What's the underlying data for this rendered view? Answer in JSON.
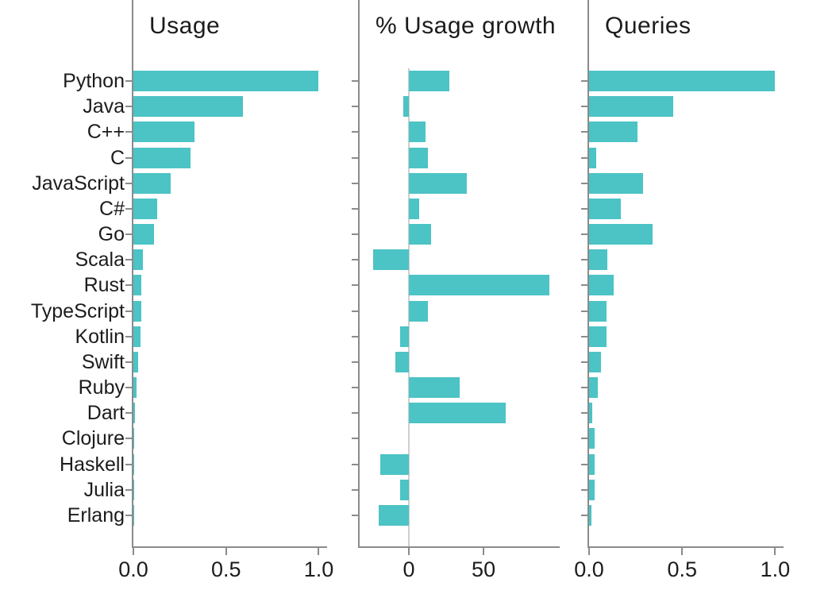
{
  "figure": {
    "bar_color": "#4cc3c5",
    "axis_color": "#8b8b8b",
    "zero_line_color": "#cfcfcf",
    "text_color": "#1c1c1c"
  },
  "chart_data": {
    "type": "bar",
    "orientation": "horizontal",
    "grid": false,
    "legend": "none",
    "categories": [
      "Python",
      "Java",
      "C++",
      "C",
      "JavaScript",
      "C#",
      "Go",
      "Scala",
      "Rust",
      "TypeScript",
      "Kotlin",
      "Swift",
      "Ruby",
      "Dart",
      "Clojure",
      "Haskell",
      "Julia",
      "Erlang"
    ],
    "series": [
      {
        "name": "Usage",
        "values": [
          1.0,
          0.59,
          0.33,
          0.31,
          0.2,
          0.13,
          0.11,
          0.05,
          0.043,
          0.043,
          0.039,
          0.026,
          0.018,
          0.009,
          0.002,
          0.001,
          0.002,
          0.001
        ],
        "xlim": [
          0,
          1.045
        ],
        "x_ticks": [
          0,
          0.5,
          1.0
        ],
        "x_tick_labels": [
          "0.0",
          "0.5",
          "1.0"
        ],
        "show_zero_line": false,
        "show_category_labels": true
      },
      {
        "name": "% Usage growth",
        "values": [
          27,
          -4,
          11,
          13,
          39,
          7,
          15,
          -24,
          94,
          13,
          -6,
          -9,
          34,
          65,
          0,
          -19,
          -6,
          -20
        ],
        "xlim": [
          -33,
          101
        ],
        "x_ticks": [
          0,
          50
        ],
        "x_tick_labels": [
          "0",
          "50"
        ],
        "show_zero_line": true,
        "show_category_labels": false
      },
      {
        "name": "Queries",
        "values": [
          1.0,
          0.45,
          0.26,
          0.04,
          0.29,
          0.17,
          0.34,
          0.1,
          0.134,
          0.094,
          0.094,
          0.064,
          0.048,
          0.018,
          0.028,
          0.028,
          0.028,
          0.011
        ],
        "xlim": [
          0,
          1.045
        ],
        "x_ticks": [
          0,
          0.5,
          1.0
        ],
        "x_tick_labels": [
          "0.0",
          "0.5",
          "1.0"
        ],
        "show_zero_line": false,
        "show_category_labels": false
      }
    ]
  }
}
